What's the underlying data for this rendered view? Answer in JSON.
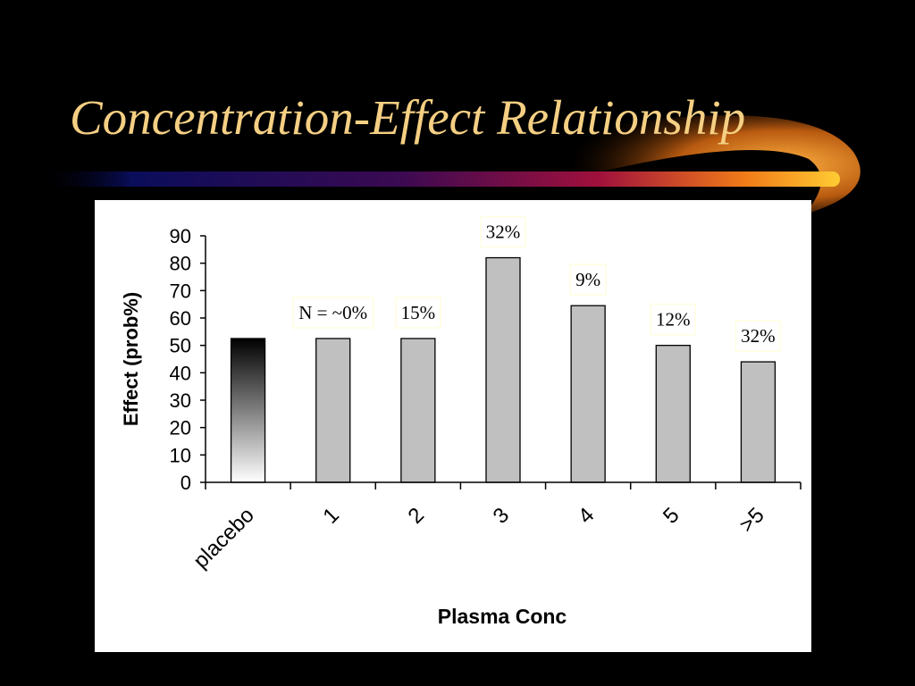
{
  "slide": {
    "title": "Concentration-Effect Relationship"
  },
  "colors": {
    "background": "#000000",
    "title": "#f5cf83",
    "bar_fill": "#c0c0c0",
    "bar_stroke": "#000000",
    "annotation_border": "#fffde0"
  },
  "chart_data": {
    "type": "bar",
    "xlabel": "Plasma Conc",
    "ylabel": "Effect (prob%)",
    "ylim": [
      0,
      90
    ],
    "yticks": [
      0,
      10,
      20,
      30,
      40,
      50,
      60,
      70,
      80,
      90
    ],
    "categories": [
      "placebo",
      "1",
      "2",
      "3",
      "4",
      "5",
      ">5"
    ],
    "values": [
      52.5,
      52.5,
      52.5,
      82,
      64.5,
      50,
      44
    ],
    "annotations": [
      "",
      "N = ~0%",
      "15%",
      "32%",
      "9%",
      "12%",
      "32%"
    ],
    "grid": false,
    "legend": "none"
  }
}
